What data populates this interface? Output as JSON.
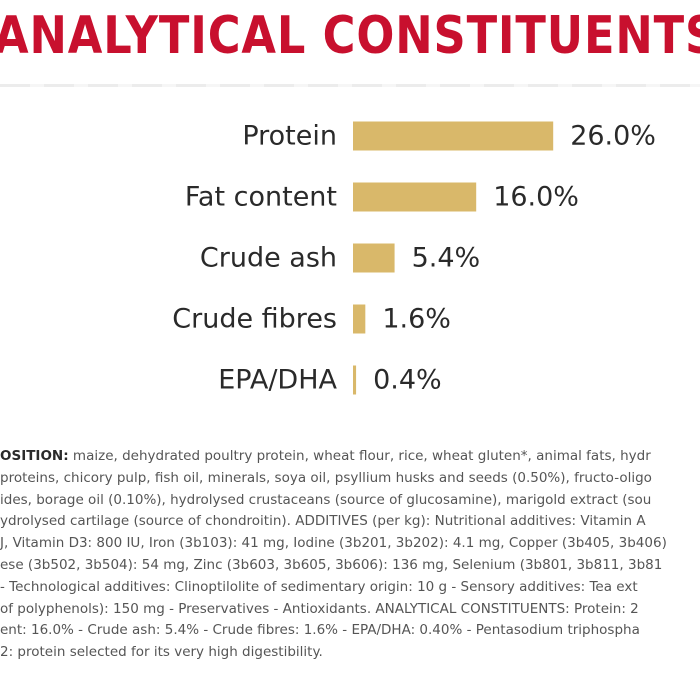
{
  "page": {
    "title": "ANALYTICAL CONSTITUENTS"
  },
  "colors": {
    "title": "#c8102e",
    "bar": "#d9b86a",
    "text": "#2a2a2a",
    "body_text": "#555555"
  },
  "chart_data": {
    "type": "bar",
    "orientation": "horizontal",
    "title": "ANALYTICAL CONSTITUENTS",
    "categories": [
      "Protein",
      "Fat content",
      "Crude ash",
      "Crude fibres",
      "EPA/DHA"
    ],
    "values": [
      26.0,
      16.0,
      5.4,
      1.6,
      0.4
    ],
    "value_labels": [
      "26.0%",
      "16.0%",
      "5.4%",
      "1.6%",
      "0.4%"
    ],
    "unit": "%",
    "grid": false,
    "legend": "none"
  },
  "composition": {
    "label": "OSITION:",
    "lines": [
      " maize, dehydrated poultry protein, wheat flour, rice, wheat gluten*, animal fats, hydr",
      "proteins, chicory pulp, fish oil, minerals, soya oil, psyllium husks and seeds (0.50%), fructo-oligo",
      "ides, borage oil (0.10%), hydrolysed crustaceans (source of glucosamine), marigold extract (sou",
      "ydrolysed cartilage (source of chondroitin). ADDITIVES (per kg): Nutritional additives: Vitamin A",
      "J, Vitamin D3: 800 IU, Iron (3b103): 41 mg, Iodine (3b201, 3b202): 4.1 mg, Copper (3b405, 3b406)",
      "ese (3b502, 3b504): 54 mg, Zinc (3b603, 3b605, 3b606): 136 mg, Selenium (3b801, 3b811, 3b81",
      "- Technological additives: Clinoptilolite of sedimentary origin: 10 g - Sensory additives: Tea ext",
      "of polyphenols): 150 mg - Preservatives - Antioxidants. ANALYTICAL CONSTITUENTS: Protein: 2",
      "ent: 16.0% - Crude ash: 5.4% - Crude fibres: 1.6% - EPA/DHA: 0.40% - Pentasodium triphospha",
      "2: protein selected for its very high digestibility."
    ]
  }
}
